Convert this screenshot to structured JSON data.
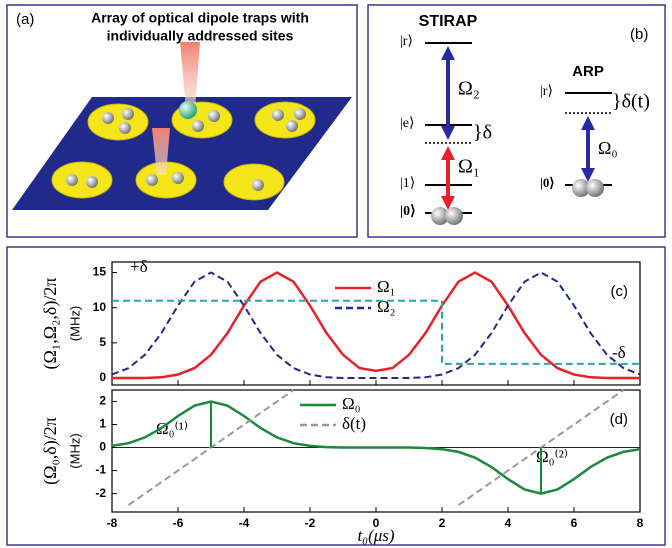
{
  "panel_a": {
    "label": "(a)",
    "title_line1": "Array of optical dipole traps with",
    "title_line2": "individually addressed sites"
  },
  "panel_b": {
    "label": "(b)",
    "stirap": "STIRAP",
    "arp": "ARP",
    "r": "|r⟩",
    "e": "|e⟩",
    "one": "|1⟩",
    "zero": "|0⟩",
    "omega2": "Ω₂",
    "omega1": "Ω₁",
    "delta": "}δ",
    "arp_r": "|r⟩",
    "arp_delta": "}δ(t)",
    "omega0": "Ω₀",
    "arp_zero": "|0⟩"
  },
  "chart_data": [
    {
      "type": "line",
      "panel_label": "(c)",
      "ylabel": "(Ω₁,Ω₂,δ)/2π",
      "yunit": "(MHz)",
      "annotations": [
        "+δ",
        "-δ"
      ],
      "xlim": [
        -8,
        8
      ],
      "ylim": [
        -1,
        16.5
      ],
      "yticks": [
        0,
        5,
        10,
        15
      ],
      "x": [
        -8,
        -7.5,
        -7,
        -6.5,
        -6,
        -5.5,
        -5,
        -4.5,
        -4,
        -3.5,
        -3,
        -2.5,
        -2,
        -1.5,
        -1,
        -0.5,
        0,
        0.5,
        1,
        1.5,
        2,
        2.5,
        3,
        3.5,
        4,
        4.5,
        5,
        5.5,
        6,
        6.5,
        7,
        7.5,
        8
      ],
      "series": [
        {
          "name": "Ω₁",
          "color": "#e8202a",
          "dash": false,
          "values": [
            0,
            0,
            0,
            0.1,
            0.5,
            1.4,
            3.3,
            6.4,
            10.3,
            13.7,
            15,
            13.7,
            10.3,
            6.4,
            3.3,
            1.4,
            1.0,
            1.4,
            3.3,
            6.4,
            10.3,
            13.7,
            15,
            13.7,
            10.3,
            6.4,
            3.3,
            1.4,
            0.5,
            0.1,
            0,
            0,
            0
          ]
        },
        {
          "name": "Ω₂",
          "color": "#1f2a8a",
          "dash": true,
          "values": [
            0.5,
            1.4,
            3.3,
            6.4,
            10.3,
            13.7,
            15,
            13.7,
            10.3,
            6.4,
            3.3,
            1.4,
            0.5,
            0.1,
            0,
            0,
            0,
            0,
            0,
            0.1,
            0.5,
            1.4,
            3.3,
            6.4,
            10.3,
            13.7,
            15,
            13.7,
            10.3,
            6.4,
            3.3,
            1.4,
            0.5
          ]
        },
        {
          "color": "#2aa6a6",
          "dash": true,
          "x": [
            -8,
            2,
            2,
            8
          ],
          "values": [
            11,
            11,
            2,
            2
          ]
        }
      ]
    },
    {
      "type": "line",
      "panel_label": "(d)",
      "ylabel": "(Ω₀,δ)/2π",
      "yunit": "(MHz)",
      "xlabel": "t₀(μs)",
      "annotations": [
        "Ω₀⁽¹⁾",
        "Ω₀⁽²⁾"
      ],
      "xlim": [
        -8,
        8
      ],
      "ylim": [
        -2.8,
        2.5
      ],
      "xticks": [
        -8,
        -6,
        -4,
        -2,
        0,
        2,
        4,
        6,
        8
      ],
      "yticks": [
        -2,
        -1,
        0,
        1,
        2
      ],
      "x": [
        -8,
        -7.5,
        -7,
        -6.5,
        -6,
        -5.5,
        -5,
        -4.5,
        -4,
        -3.5,
        -3,
        -2.5,
        -2,
        -1.5,
        -1,
        -0.5,
        0,
        0.5,
        1,
        1.5,
        2,
        2.5,
        3,
        3.5,
        4,
        4.5,
        5,
        5.5,
        6,
        6.5,
        7,
        7.5,
        8
      ],
      "series": [
        {
          "name": "Ω₀",
          "color": "#1a8a3a",
          "dash": false,
          "values": [
            0.07,
            0.19,
            0.44,
            0.85,
            1.37,
            1.82,
            2,
            1.82,
            1.37,
            0.85,
            0.44,
            0.19,
            0.07,
            0.02,
            0,
            0,
            0,
            0,
            0,
            -0.02,
            -0.07,
            -0.19,
            -0.44,
            -0.85,
            -1.37,
            -1.82,
            -2,
            -1.82,
            -1.37,
            -0.85,
            -0.44,
            -0.19,
            -0.07
          ]
        },
        {
          "name": "δ(t)",
          "color": "#999999",
          "dash": true,
          "x": [
            -7.5,
            -2.5,
            0,
            2.5,
            7.5
          ],
          "values": [
            -2.5,
            2.5,
            null,
            -2.5,
            2.5
          ]
        }
      ]
    }
  ]
}
